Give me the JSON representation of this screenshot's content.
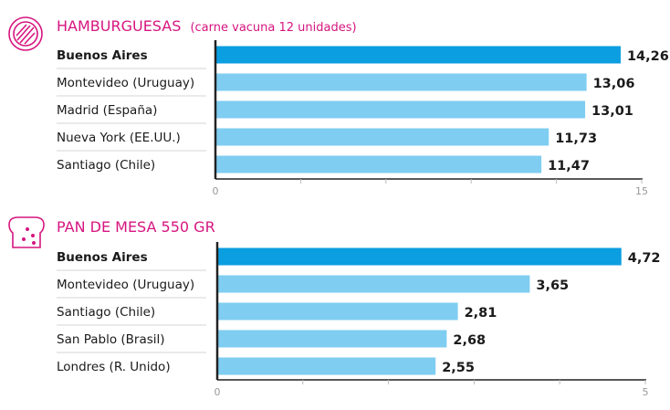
{
  "colors": {
    "accent": "#d6157f",
    "highlight_bar": "#0b9ee0",
    "bar": "#7fcdf1",
    "axis": "#222222",
    "tick": "#bbbbbb",
    "divider": "#d6d6d6",
    "label": "#1a1a1a"
  },
  "chart_data": [
    {
      "type": "bar",
      "orientation": "horizontal",
      "icon": "hamburger-icon",
      "title": "HAMBURGUESAS",
      "subtitle": "(carne vacuna 12 unidades)",
      "categories": [
        "Buenos Aires",
        "Montevideo (Uruguay)",
        "Madrid (España)",
        "Nueva York (EE.UU.)",
        "Santiago (Chile)"
      ],
      "values": [
        14.26,
        13.06,
        13.01,
        11.73,
        11.47
      ],
      "value_labels": [
        "14,26",
        "13,06",
        "13,01",
        "11,73",
        "11,47"
      ],
      "highlight": "Buenos Aires",
      "xlim": [
        0,
        15
      ],
      "tick_labels": [
        "0",
        "15"
      ]
    },
    {
      "type": "bar",
      "orientation": "horizontal",
      "icon": "bread-icon",
      "title": "PAN DE MESA 550 GR",
      "subtitle": "",
      "categories": [
        "Buenos Aires",
        "Montevideo (Uruguay)",
        "Santiago (Chile)",
        "San Pablo (Brasil)",
        "Londres (R. Unido)"
      ],
      "values": [
        4.72,
        3.65,
        2.81,
        2.68,
        2.55
      ],
      "value_labels": [
        "4,72",
        "3,65",
        "2,81",
        "2,68",
        "2,55"
      ],
      "highlight": "Buenos Aires",
      "xlim": [
        0,
        5
      ],
      "tick_labels": [
        "0",
        "5"
      ]
    }
  ]
}
